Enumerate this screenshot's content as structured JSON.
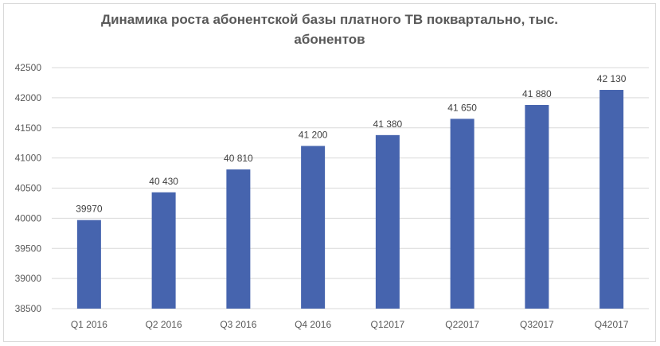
{
  "chart_data": {
    "type": "bar",
    "title_lines": [
      "Динамика роста абонентской базы платного ТВ поквартально, тыс.",
      "абонентов"
    ],
    "categories": [
      "Q1 2016",
      "Q2 2016",
      "Q3 2016",
      "Q4 2016",
      "Q12017",
      "Q22017",
      "Q32017",
      "Q42017"
    ],
    "values": [
      39970,
      40430,
      40810,
      41200,
      41380,
      41650,
      41880,
      42130
    ],
    "data_labels": [
      "39970",
      "40 430",
      "40 810",
      "41 200",
      "41 380",
      "41 650",
      "41 880",
      "42 130"
    ],
    "yticks": [
      "38500",
      "39000",
      "39500",
      "40000",
      "40500",
      "41000",
      "41500",
      "42000",
      "42500"
    ],
    "ylim": [
      38500,
      42500
    ],
    "grid": true,
    "legend": "none",
    "bar_color": "#4664AE",
    "grid_color": "#d9d9d9"
  }
}
